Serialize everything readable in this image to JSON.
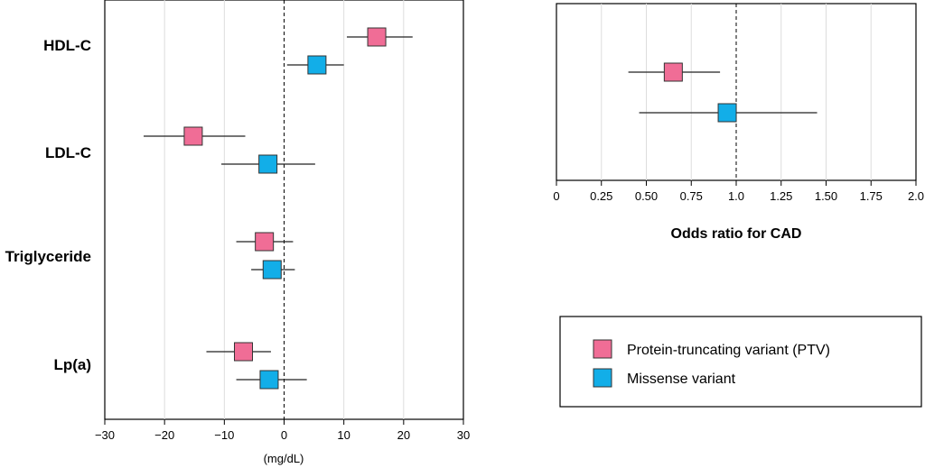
{
  "colors": {
    "ptv": "#f06d96",
    "missense": "#12aee8",
    "marker_stroke": "#333333",
    "grid": "#dddddd"
  },
  "legend": {
    "items": [
      {
        "label": "Protein-truncating variant (PTV)",
        "color_key": "ptv"
      },
      {
        "label": "Missense variant",
        "color_key": "missense"
      }
    ]
  },
  "chart_data": [
    {
      "type": "forest",
      "xlabel": "(mg/dL)",
      "xlim": [
        -30,
        30
      ],
      "xticks": [
        -30,
        -20,
        -10,
        0,
        10,
        20,
        30
      ],
      "tick_labels": [
        "−30",
        "−20",
        "−10",
        "0",
        "10",
        "20",
        "30"
      ],
      "reference_line": 0,
      "grid": true,
      "categories": [
        "HDL-C",
        "LDL-C",
        "Triglyceride",
        "Lp(a)"
      ],
      "series": [
        {
          "key": "ptv",
          "name": "Protein-truncating variant (PTV)",
          "estimates": [
            15.5,
            -15.2,
            -3.3,
            -6.8
          ],
          "lower": [
            10.5,
            -23.5,
            -8.0,
            -13.0
          ],
          "upper": [
            21.5,
            -6.5,
            1.5,
            -2.2
          ]
        },
        {
          "key": "missense",
          "name": "Missense variant",
          "estimates": [
            5.5,
            -2.7,
            -2.0,
            -2.5
          ],
          "lower": [
            0.5,
            -10.5,
            -5.5,
            -8.0
          ],
          "upper": [
            10.0,
            5.2,
            1.8,
            3.8
          ]
        }
      ]
    },
    {
      "type": "forest",
      "xlabel": "Odds ratio for CAD",
      "xlim": [
        0,
        2.0
      ],
      "xticks": [
        0,
        0.25,
        0.5,
        0.75,
        1.0,
        1.25,
        1.5,
        1.75,
        2.0
      ],
      "tick_labels": [
        "0",
        "0.25",
        "0.50",
        "0.75",
        "1.0",
        "1.25",
        "1.50",
        "1.75",
        "2.0"
      ],
      "reference_line": 1.0,
      "grid": true,
      "categories": [
        ""
      ],
      "series": [
        {
          "key": "ptv",
          "name": "Protein-truncating variant (PTV)",
          "estimates": [
            0.65
          ],
          "lower": [
            0.4
          ],
          "upper": [
            0.91
          ]
        },
        {
          "key": "missense",
          "name": "Missense variant",
          "estimates": [
            0.95
          ],
          "lower": [
            0.46
          ],
          "upper": [
            1.45
          ]
        }
      ]
    }
  ]
}
